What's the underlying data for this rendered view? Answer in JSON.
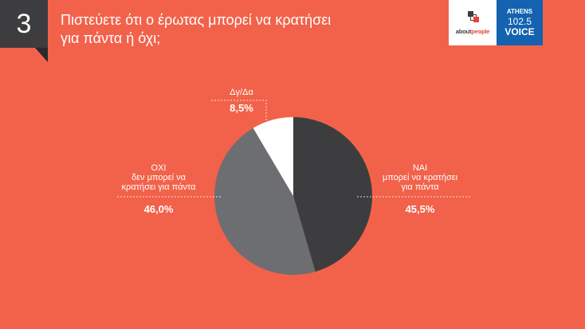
{
  "header": {
    "number": "3",
    "title_line1": "Πιστεύετε ότι ο έρωτας μπορεί να κρατήσει",
    "title_line2": "για πάντα ή όχι;"
  },
  "logos": {
    "aboutpeople": {
      "text_dark": "about",
      "text_accent": "people"
    },
    "athens_voice": {
      "line1": "ATHENS",
      "line2": "102.5",
      "line3": "VOICE"
    }
  },
  "colors": {
    "background": "#f2624a",
    "dark_box": "#3d3d3f",
    "athens_blue": "#1462b0"
  },
  "chart_data": {
    "type": "pie",
    "title": "Πιστεύετε ότι ο έρωτας μπορεί να κρατήσει για πάντα ή όχι;",
    "slices": [
      {
        "label_lines": [
          "ΝΑΙ",
          "μπορεί να κρατήσει",
          "για πάντα"
        ],
        "value": 45.5,
        "value_label": "45,5%",
        "color": "#3d3d3f"
      },
      {
        "label_lines": [
          "ΟΧΙ",
          "δεν μπορεί να",
          "κρατήσει για πάντα"
        ],
        "value": 46.0,
        "value_label": "46,0%",
        "color": "#6d6e71"
      },
      {
        "label_lines": [
          "Δγ/Δα"
        ],
        "value": 8.5,
        "value_label": "8,5%",
        "color": "#ffffff"
      }
    ]
  }
}
